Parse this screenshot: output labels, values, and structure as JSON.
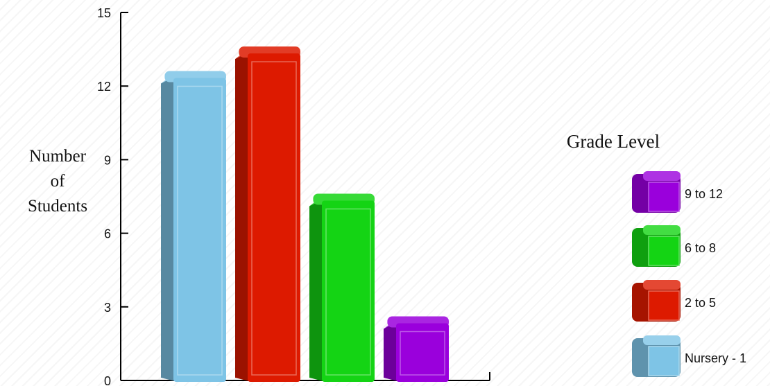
{
  "chart_data": {
    "type": "bar",
    "title": "",
    "xlabel": "",
    "ylabel": "Number of Students",
    "ylabel_lines": [
      "Number",
      "of",
      "Students"
    ],
    "ylim": [
      0,
      15
    ],
    "yticks": [
      0,
      3,
      6,
      9,
      12,
      15
    ],
    "grid": false,
    "legend_title": "Grade Level",
    "legend_position": "right",
    "categories": [
      "Nursery - 1",
      "2 to 5",
      "6 to 8",
      "9 to 12"
    ],
    "values": [
      12.5,
      13.5,
      7.5,
      2.5
    ],
    "colors": {
      "Nursery - 1": "#7ec4e6",
      "2 to 5": "#dd1a00",
      "6 to 8": "#14d414",
      "9 to 12": "#9a00dc"
    },
    "legend_order": [
      "9 to 12",
      "6 to 8",
      "2 to 5",
      "Nursery - 1"
    ]
  }
}
